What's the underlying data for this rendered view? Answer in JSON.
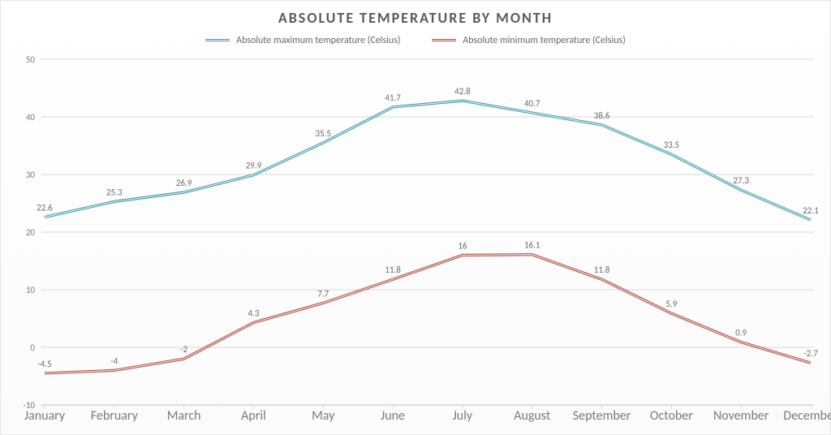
{
  "chart": {
    "type": "line",
    "title": "ABSOLUTE TEMPERATURE BY MONTH",
    "title_fontsize": 18,
    "title_color": "#5b5b5b",
    "background_color": "#fdfdfd",
    "grid_color": "#d9d9d9",
    "axis_text_color": "#7a7a7a",
    "label_fontsize": 11,
    "categories": [
      "January",
      "February",
      "March",
      "April",
      "May",
      "June",
      "July",
      "August",
      "September",
      "October",
      "November",
      "December"
    ],
    "ylim": [
      -10,
      50
    ],
    "ytick_step": 10,
    "line_style": "double",
    "line_width": 3.2,
    "series": [
      {
        "name": "Absolute maximum temperature (Celsius)",
        "color": "#3d9aa8",
        "values": [
          22.6,
          25.3,
          26.9,
          29.9,
          35.5,
          41.7,
          42.8,
          40.7,
          38.6,
          33.5,
          27.3,
          22.1
        ]
      },
      {
        "name": "Absolute minimum temperature (Celsius)",
        "color": "#b04a3a",
        "values": [
          -4.5,
          -4,
          -2,
          4.3,
          7.7,
          11.8,
          16,
          16.1,
          11.8,
          5.9,
          0.9,
          -2.7
        ]
      }
    ],
    "legend_position": "top-center"
  }
}
